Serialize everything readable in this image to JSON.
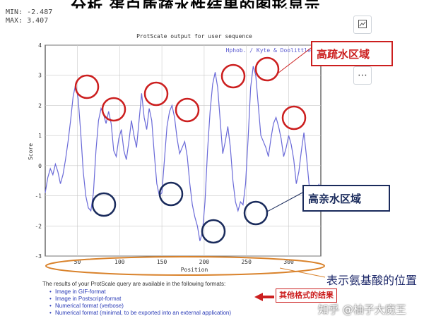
{
  "page": {
    "cropped_heading": "分析 蛋白质疏水性结果的图形显示"
  },
  "readout": {
    "min_label": "MIN:",
    "min_value": "-2.487",
    "max_label": "MAX:",
    "max_value": "3.407"
  },
  "chart_data": {
    "type": "line",
    "title": "ProtScale output for user sequence",
    "legend": "Hphob. / Kyte & Doolittle",
    "xlabel": "Position",
    "ylabel": "Score",
    "xlim": [
      12,
      338
    ],
    "ylim": [
      -3,
      4
    ],
    "xticks": [
      50,
      100,
      150,
      200,
      250,
      300
    ],
    "yticks": [
      -3,
      -2,
      -1,
      0,
      1,
      2,
      3,
      4
    ],
    "grid": true,
    "line_color": "#6a6ad8",
    "series": [
      {
        "x": [
          12,
          15,
          18,
          21,
          24,
          27,
          30,
          33,
          36,
          39,
          42,
          45,
          48,
          51,
          54,
          57,
          60,
          63,
          66,
          69,
          72,
          75,
          78,
          81,
          84,
          87,
          90,
          93,
          96,
          99,
          102,
          105,
          108,
          111,
          114,
          117,
          120,
          123,
          126,
          129,
          132,
          135,
          138,
          141,
          144,
          147,
          150,
          153,
          156,
          159,
          162,
          165,
          168,
          171,
          174,
          177,
          180,
          183,
          186,
          189,
          192,
          195,
          198,
          201,
          204,
          207,
          210,
          213,
          216,
          219,
          222,
          225,
          228,
          231,
          234,
          237,
          240,
          243,
          246,
          249,
          252,
          255,
          258,
          261,
          264,
          267,
          270,
          273,
          276,
          279,
          282,
          285,
          288,
          291,
          294,
          297,
          300,
          303,
          306,
          309,
          312,
          315,
          318,
          321,
          324,
          327,
          330,
          333,
          336
        ],
        "y": [
          -0.9,
          -0.4,
          -0.1,
          -0.3,
          0.05,
          -0.2,
          -0.6,
          -0.3,
          0.2,
          0.8,
          1.5,
          2.3,
          2.7,
          2.2,
          1.1,
          -0.2,
          -1.0,
          -1.4,
          -1.5,
          -0.9,
          0.5,
          1.5,
          1.9,
          1.7,
          1.4,
          1.8,
          1.4,
          0.5,
          0.3,
          0.9,
          1.2,
          0.5,
          0.2,
          0.8,
          1.5,
          1.0,
          0.6,
          1.5,
          2.4,
          1.6,
          1.2,
          1.9,
          1.5,
          0.4,
          -0.6,
          -1.0,
          -0.9,
          0.2,
          1.3,
          1.8,
          2.0,
          1.6,
          0.9,
          0.4,
          0.6,
          0.8,
          0.3,
          -0.6,
          -1.3,
          -1.7,
          -2.0,
          -2.5,
          -2.2,
          -1.2,
          0.5,
          1.8,
          2.7,
          3.1,
          2.6,
          1.5,
          0.4,
          0.8,
          1.3,
          0.6,
          -0.5,
          -1.2,
          -1.5,
          -1.2,
          -1.3,
          -0.6,
          0.9,
          2.6,
          3.3,
          3.0,
          2.0,
          1.0,
          0.8,
          0.6,
          0.3,
          0.9,
          1.4,
          1.6,
          1.3,
          0.9,
          0.3,
          0.6,
          1.0,
          0.7,
          0.2,
          -0.6,
          -0.2,
          0.5,
          1.1,
          0.3,
          -0.6,
          -1.4,
          -1.2,
          -0.8,
          -0.6
        ]
      }
    ]
  },
  "annotations": {
    "high_hydrophobic": "高疏水区域",
    "high_hydrophilic": "高亲水区域",
    "amino_position": "表示氨基酸的位置",
    "other_formats": "其他格式的结果"
  },
  "results": {
    "intro": "The results of your ProtScale query are available in the following formats:",
    "links": [
      "Image in GIF-format",
      "Image in Postscript-format",
      "Numerical format (verbose)",
      "Numerical format (minimal, to be exported into an external application)"
    ]
  },
  "watermark": "知乎 @柚子大魔王",
  "icons": {
    "side": [
      "image-settings-icon",
      "zoom-in-icon",
      "more-options-icon"
    ]
  },
  "colors": {
    "annotation_red": "#cc1f1f",
    "annotation_navy": "#1a2b5c",
    "ellipse_orange": "#d9822b",
    "link_blue": "#2a3bb7"
  }
}
